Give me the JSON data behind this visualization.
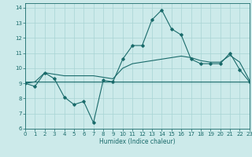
{
  "xlabel": "Humidex (Indice chaleur)",
  "xlim": [
    0,
    23
  ],
  "ylim": [
    6,
    14.3
  ],
  "xticks": [
    0,
    1,
    2,
    3,
    4,
    5,
    6,
    7,
    8,
    9,
    10,
    11,
    12,
    13,
    14,
    15,
    16,
    17,
    18,
    19,
    20,
    21,
    22,
    23
  ],
  "yticks": [
    6,
    7,
    8,
    9,
    10,
    11,
    12,
    13,
    14
  ],
  "bg_color": "#cceaea",
  "grid_color": "#a8d4d4",
  "line_color": "#1a6b6b",
  "line1_x": [
    0,
    1,
    2,
    3,
    4,
    5,
    6,
    7,
    8,
    9,
    10,
    11,
    12,
    13,
    14,
    15,
    16,
    17,
    18,
    19,
    20,
    21,
    22,
    23
  ],
  "line1_y": [
    9.0,
    8.8,
    9.7,
    9.3,
    8.1,
    7.6,
    7.8,
    6.4,
    9.2,
    9.1,
    10.6,
    11.5,
    11.5,
    13.2,
    13.85,
    12.6,
    12.2,
    10.6,
    10.3,
    10.3,
    10.3,
    11.0,
    9.9,
    9.1
  ],
  "line2_x": [
    0,
    1,
    2,
    3,
    4,
    5,
    6,
    7,
    8,
    9,
    10,
    11,
    12,
    13,
    14,
    15,
    16,
    17,
    18,
    19,
    20,
    21,
    22,
    23
  ],
  "line2_y": [
    9.0,
    9.1,
    9.7,
    9.6,
    9.5,
    9.5,
    9.5,
    9.5,
    9.4,
    9.3,
    10.0,
    10.3,
    10.4,
    10.5,
    10.6,
    10.7,
    10.8,
    10.7,
    10.5,
    10.4,
    10.4,
    10.85,
    10.4,
    9.2
  ],
  "line3_x": [
    0,
    23
  ],
  "line3_y": [
    9.1,
    9.1
  ]
}
